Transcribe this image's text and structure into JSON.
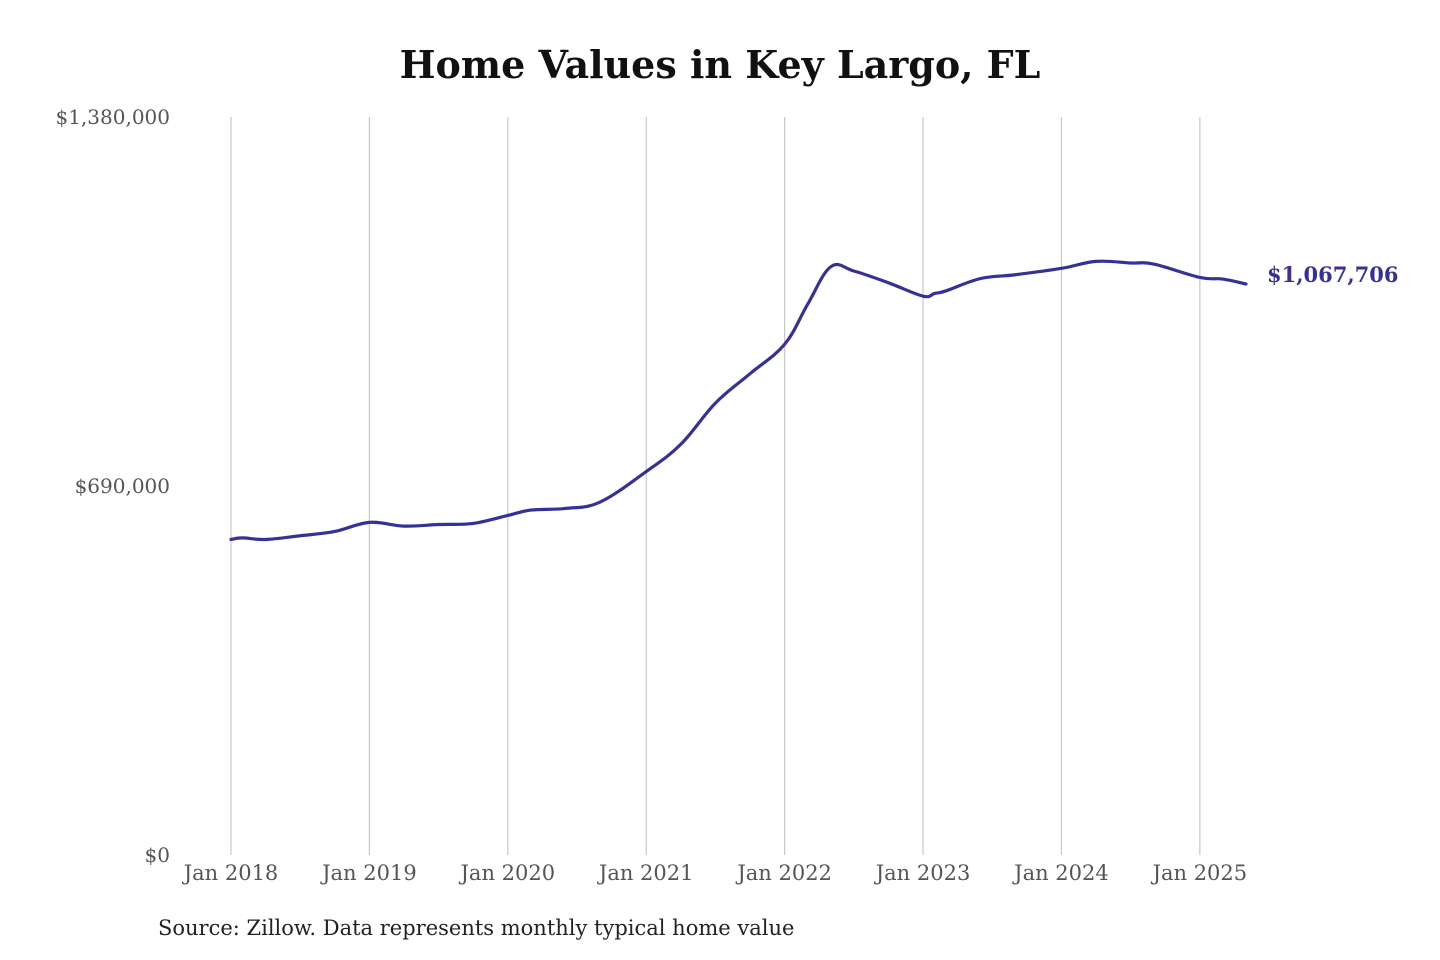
{
  "title": "Home Values in Key Largo, FL",
  "source_note": "Source: Zillow. Data represents monthly typical home value",
  "colors": {
    "line": "#353197",
    "grid": "#c8c8c8",
    "end_label": "#353197"
  },
  "chart_data": {
    "type": "line",
    "title": "Home Values in Key Largo, FL",
    "xlabel": "",
    "ylabel": "",
    "ylim": [
      0,
      1380000
    ],
    "xlim": [
      "2018-01",
      "2025-05"
    ],
    "y_ticks": [
      {
        "value": 0,
        "label": "$0"
      },
      {
        "value": 690000,
        "label": "$690,000"
      },
      {
        "value": 1380000,
        "label": "$1,380,000"
      }
    ],
    "x_ticks": [
      {
        "date": "2018-01",
        "label": "Jan 2018"
      },
      {
        "date": "2019-01",
        "label": "Jan 2019"
      },
      {
        "date": "2020-01",
        "label": "Jan 2020"
      },
      {
        "date": "2021-01",
        "label": "Jan 2021"
      },
      {
        "date": "2022-01",
        "label": "Jan 2022"
      },
      {
        "date": "2023-01",
        "label": "Jan 2023"
      },
      {
        "date": "2024-01",
        "label": "Jan 2024"
      },
      {
        "date": "2025-01",
        "label": "Jan 2025"
      }
    ],
    "grid": {
      "vertical": true,
      "horizontal": false
    },
    "end_label": "$1,067,706",
    "series": [
      {
        "x": [
          "2018-01",
          "2018-02",
          "2018-04",
          "2018-07",
          "2018-10",
          "2019-01",
          "2019-04",
          "2019-07",
          "2019-10",
          "2020-01",
          "2020-03",
          "2020-06",
          "2020-09",
          "2021-01",
          "2021-04",
          "2021-07",
          "2021-10",
          "2022-01",
          "2022-03",
          "2022-05",
          "2022-07",
          "2022-10",
          "2023-01",
          "2023-02",
          "2023-03",
          "2023-06",
          "2023-09",
          "2024-01",
          "2024-04",
          "2024-07",
          "2024-09",
          "2025-01",
          "2025-03",
          "2025-05"
        ],
        "y": [
          590000,
          593000,
          590000,
          597000,
          605000,
          622000,
          615000,
          618000,
          620000,
          635000,
          645000,
          648000,
          660000,
          717000,
          768000,
          845000,
          900000,
          955000,
          1030000,
          1100000,
          1092000,
          1070000,
          1045000,
          1050000,
          1055000,
          1078000,
          1085000,
          1097000,
          1110000,
          1107000,
          1105000,
          1080000,
          1077000,
          1067706
        ]
      }
    ]
  }
}
